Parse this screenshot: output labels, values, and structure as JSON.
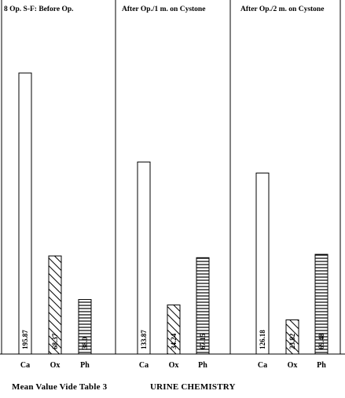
{
  "chart_data": {
    "type": "bar",
    "categories": [
      "Ca",
      "Ox",
      "Ph"
    ],
    "panels": [
      {
        "title": "8 Op. S-F: Before Op.",
        "values": [
          195.87,
          68.37,
          38.0
        ],
        "value_labels": [
          "195.87",
          "68.37",
          "38.0"
        ]
      },
      {
        "title": "After Op./1 m. on Cystone",
        "values": [
          133.87,
          34.24,
          67.15
        ],
        "value_labels": [
          "133.87",
          "34.24",
          "67.15"
        ]
      },
      {
        "title": "After Op./2 m. on Cystone",
        "values": [
          126.18,
          23.82,
          69.48
        ],
        "value_labels": [
          "126.18",
          "23.82",
          "69.48"
        ]
      }
    ],
    "patterns": [
      "blank",
      "diagonal-hatch",
      "horizontal-hatch"
    ],
    "grid": false
  },
  "footer": {
    "left": "Mean Value Vide Table 3",
    "right": "URINE CHEMISTRY"
  },
  "colors": {
    "ink": "#000000",
    "background": "#ffffff"
  }
}
